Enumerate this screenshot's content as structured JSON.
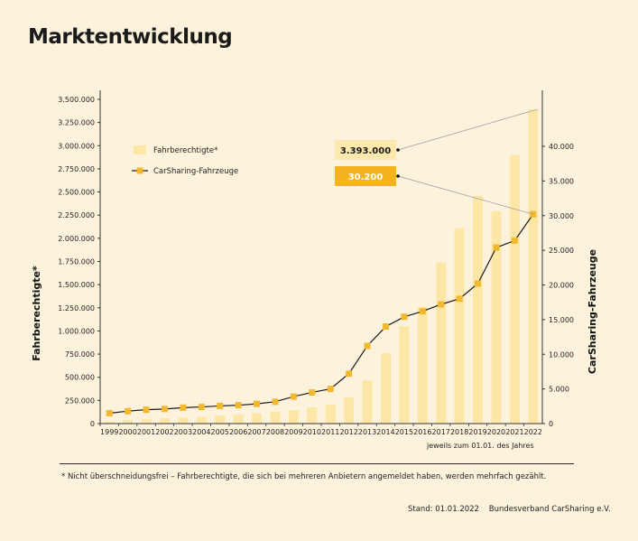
{
  "title": "Marktentwicklung",
  "colors": {
    "background": "#fdf3dc",
    "bar": "#fce7a6",
    "line": "#1a1a1a",
    "marker": "#f2b92e",
    "callout_bar_bg": "#fde9ad",
    "callout_line_bg": "#f5b41e",
    "callout_line_text": "#ffffff"
  },
  "chart_data": {
    "type": "bar",
    "categories": [
      "1999",
      "2000",
      "2001",
      "2002",
      "2003",
      "2004",
      "2005",
      "2006",
      "2007",
      "2008",
      "2009",
      "2010",
      "2011",
      "2012",
      "2013",
      "2014",
      "2015",
      "2016",
      "2017",
      "2018",
      "2019",
      "2020",
      "2021",
      "2022"
    ],
    "series": [
      {
        "name": "Fahrberechtigte*",
        "type": "bar",
        "axis": "left",
        "values": [
          25000,
          38000,
          50000,
          58000,
          65000,
          75000,
          86000,
          98000,
          110000,
          128000,
          145000,
          175000,
          205000,
          285000,
          465000,
          760000,
          1050000,
          1260000,
          1740000,
          2110000,
          2460000,
          2290000,
          2900000,
          3393000
        ]
      },
      {
        "name": "CarSharing-Fahrzeuge",
        "type": "line",
        "axis": "right",
        "values": [
          1500,
          1800,
          2000,
          2100,
          2300,
          2400,
          2550,
          2650,
          2850,
          3150,
          3900,
          4500,
          5000,
          7200,
          11200,
          14000,
          15400,
          16200,
          17200,
          18000,
          20200,
          25400,
          26400,
          30200
        ]
      }
    ],
    "y_left": {
      "label": "Fahrberechtigte*",
      "range": [
        0,
        3500000
      ],
      "ticks": [
        "0",
        "250.000",
        "500.000",
        "750.000",
        "1.000.000",
        "1.250.000",
        "1.500.000",
        "1.750.000",
        "2.000.000",
        "2.250.000",
        "2.500.000",
        "2.750.000",
        "3.000.000",
        "3.250.000",
        "3.500.000"
      ]
    },
    "y_right": {
      "label": "CarSharing-Fahrzeuge",
      "range": [
        0,
        46000
      ],
      "ticks": [
        "0",
        "5.000",
        "10.000",
        "15.000",
        "20.000",
        "25.000",
        "30.000",
        "35.000",
        "40.000"
      ]
    },
    "x_note": "jeweils zum 01.01. des Jahres",
    "legend": {
      "placement": "top-left",
      "items": [
        "Fahrberechtigte*",
        "CarSharing-Fahrzeuge"
      ]
    },
    "annotations": [
      {
        "text": "3.393.000",
        "target": "Fahrberechtigte*",
        "category": "2022"
      },
      {
        "text": "30.200",
        "target": "CarSharing-Fahrzeuge",
        "category": "2022"
      }
    ],
    "grid": false
  },
  "footnote": "* Nicht überschneidungsfrei – Fahrberechtigte, die sich bei mehreren Anbietern angemeldet haben, werden mehrfach gezählt.",
  "source": "Stand: 01.01.2022    Bundesverband CarSharing e.V."
}
